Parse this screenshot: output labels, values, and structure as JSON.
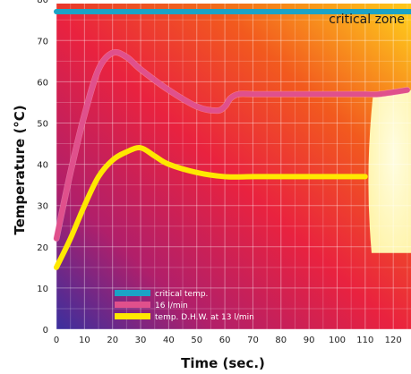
{
  "chart_data": {
    "type": "line",
    "title": "",
    "xlabel": "Time (sec.)",
    "ylabel": "Temperature (°C)",
    "xlim": [
      0,
      125
    ],
    "ylim": [
      0,
      83
    ],
    "x_ticks": [
      0,
      10,
      20,
      30,
      40,
      50,
      60,
      70,
      80,
      90,
      100,
      110,
      120
    ],
    "y_ticks": [
      0,
      10,
      20,
      30,
      40,
      50,
      60,
      70,
      80
    ],
    "grid": true,
    "legend_position": "bottom-left",
    "annotations": [
      {
        "text": "critical zone",
        "position": "top-right"
      }
    ],
    "series": [
      {
        "name": "critical temp.",
        "color": "#1ba3c6",
        "x": [
          0,
          125
        ],
        "y": [
          77,
          77
        ]
      },
      {
        "name": "16 l/min",
        "color": "#e0508c",
        "x": [
          0,
          5,
          10,
          15,
          20,
          25,
          30,
          40,
          50,
          57,
          60,
          62,
          65,
          70,
          80,
          90,
          100,
          110,
          115,
          125
        ],
        "y": [
          22,
          38,
          52,
          63,
          67,
          66,
          63,
          58,
          54,
          53,
          54,
          56,
          57,
          57,
          57,
          57,
          57,
          57,
          57,
          58
        ]
      },
      {
        "name": "temp. D.H.W. at 13 l/min",
        "color": "#ffe800",
        "x": [
          0,
          5,
          10,
          15,
          20,
          25,
          30,
          35,
          40,
          50,
          60,
          70,
          80,
          90,
          100,
          110
        ],
        "y": [
          15,
          22,
          30,
          37,
          41,
          43,
          44,
          42,
          40,
          38,
          37,
          37,
          37,
          37,
          37,
          37
        ]
      }
    ],
    "colors": {
      "background_start": "#3a2ea0",
      "background_mid": "#e81e4a",
      "background_end": "#ffd21a",
      "critical_zone_band": "#f5a800",
      "pale_region": "#fffbc8"
    }
  }
}
